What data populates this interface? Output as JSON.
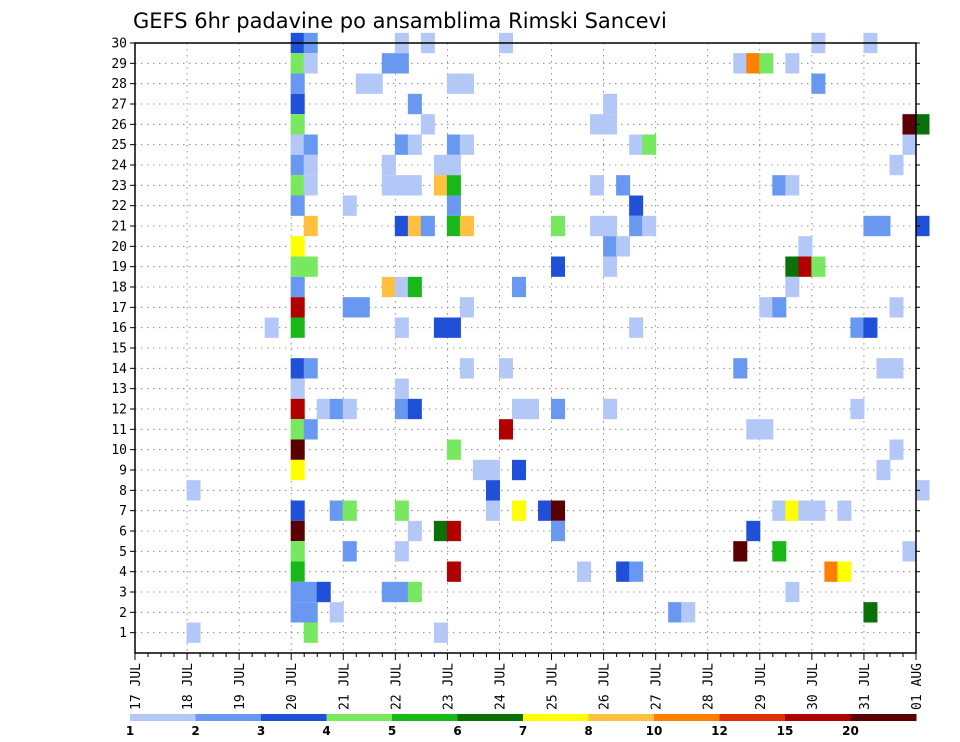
{
  "chart_data": {
    "type": "heatmap",
    "title": "GEFS 6hr padavine po ansamblima Rimski Sancevi",
    "xlabel": "",
    "ylabel": "",
    "x_ticks": [
      "17 JUL",
      "18 JUL",
      "19 JUL",
      "20 JUL",
      "21 JUL",
      "22 JUL",
      "23 JUL",
      "24 JUL",
      "25 JUL",
      "26 JUL",
      "27 JUL",
      "28 JUL",
      "29 JUL",
      "30 JUL",
      "31 JUL",
      "01 AUG"
    ],
    "y_ticks": [
      "1",
      "2",
      "3",
      "4",
      "5",
      "6",
      "7",
      "8",
      "9",
      "10",
      "11",
      "12",
      "13",
      "14",
      "15",
      "16",
      "17",
      "18",
      "19",
      "20",
      "21",
      "22",
      "23",
      "24",
      "25",
      "26",
      "27",
      "28",
      "29",
      "30"
    ],
    "x_unit": "days from 17 JUL",
    "xlim": [
      0,
      15
    ],
    "ylim": [
      0,
      30
    ],
    "grid": true,
    "colorbar": {
      "ticks": [
        "1",
        "2",
        "3",
        "4",
        "5",
        "6",
        "7",
        "8",
        "10",
        "12",
        "15",
        "20"
      ],
      "colors": [
        "#b4c8f8",
        "#6898f0",
        "#2050d8",
        "#78e860",
        "#18b818",
        "#0a700a",
        "#ffff00",
        "#ffc040",
        "#ff8000",
        "#e03000",
        "#b00000",
        "#5a0000"
      ]
    },
    "cells": [
      {
        "x": 3.0,
        "y": 30,
        "v": 3
      },
      {
        "x": 3.25,
        "y": 30,
        "v": 2
      },
      {
        "x": 5.0,
        "y": 30,
        "v": 1
      },
      {
        "x": 5.5,
        "y": 30,
        "v": 1
      },
      {
        "x": 7.0,
        "y": 30,
        "v": 1
      },
      {
        "x": 13.0,
        "y": 30,
        "v": 1
      },
      {
        "x": 14.0,
        "y": 30,
        "v": 1
      },
      {
        "x": 3.0,
        "y": 29,
        "v": 4
      },
      {
        "x": 3.25,
        "y": 29,
        "v": 1
      },
      {
        "x": 4.75,
        "y": 29,
        "v": 2
      },
      {
        "x": 5.0,
        "y": 29,
        "v": 2
      },
      {
        "x": 11.5,
        "y": 29,
        "v": 1
      },
      {
        "x": 11.75,
        "y": 29,
        "v": 10
      },
      {
        "x": 12.0,
        "y": 29,
        "v": 4
      },
      {
        "x": 12.5,
        "y": 29,
        "v": 1
      },
      {
        "x": 3.0,
        "y": 28,
        "v": 2
      },
      {
        "x": 4.25,
        "y": 28,
        "v": 1
      },
      {
        "x": 4.5,
        "y": 28,
        "v": 1
      },
      {
        "x": 6.0,
        "y": 28,
        "v": 1
      },
      {
        "x": 6.25,
        "y": 28,
        "v": 1
      },
      {
        "x": 13.0,
        "y": 28,
        "v": 2
      },
      {
        "x": 3.0,
        "y": 27,
        "v": 3
      },
      {
        "x": 5.25,
        "y": 27,
        "v": 2
      },
      {
        "x": 9.0,
        "y": 27,
        "v": 1
      },
      {
        "x": 3.0,
        "y": 26,
        "v": 4
      },
      {
        "x": 5.5,
        "y": 26,
        "v": 1
      },
      {
        "x": 8.75,
        "y": 26,
        "v": 1
      },
      {
        "x": 9.0,
        "y": 26,
        "v": 1
      },
      {
        "x": 14.75,
        "y": 26,
        "v": 20
      },
      {
        "x": 15.0,
        "y": 26,
        "v": 6
      },
      {
        "x": 3.0,
        "y": 25,
        "v": 1
      },
      {
        "x": 3.25,
        "y": 25,
        "v": 2
      },
      {
        "x": 5.0,
        "y": 25,
        "v": 2
      },
      {
        "x": 5.25,
        "y": 25,
        "v": 1
      },
      {
        "x": 6.0,
        "y": 25,
        "v": 2
      },
      {
        "x": 6.25,
        "y": 25,
        "v": 1
      },
      {
        "x": 9.5,
        "y": 25,
        "v": 1
      },
      {
        "x": 9.75,
        "y": 25,
        "v": 4
      },
      {
        "x": 14.75,
        "y": 25,
        "v": 1
      },
      {
        "x": 3.0,
        "y": 24,
        "v": 2
      },
      {
        "x": 3.25,
        "y": 24,
        "v": 1
      },
      {
        "x": 4.75,
        "y": 24,
        "v": 1
      },
      {
        "x": 5.75,
        "y": 24,
        "v": 1
      },
      {
        "x": 6.0,
        "y": 24,
        "v": 1
      },
      {
        "x": 14.5,
        "y": 24,
        "v": 1
      },
      {
        "x": 3.0,
        "y": 23,
        "v": 4
      },
      {
        "x": 3.25,
        "y": 23,
        "v": 1
      },
      {
        "x": 4.75,
        "y": 23,
        "v": 1
      },
      {
        "x": 5.0,
        "y": 23,
        "v": 1
      },
      {
        "x": 5.25,
        "y": 23,
        "v": 1
      },
      {
        "x": 5.75,
        "y": 23,
        "v": 8
      },
      {
        "x": 6.0,
        "y": 23,
        "v": 5
      },
      {
        "x": 8.75,
        "y": 23,
        "v": 1
      },
      {
        "x": 9.25,
        "y": 23,
        "v": 2
      },
      {
        "x": 12.25,
        "y": 23,
        "v": 2
      },
      {
        "x": 12.5,
        "y": 23,
        "v": 1
      },
      {
        "x": 3.0,
        "y": 22,
        "v": 2
      },
      {
        "x": 4.0,
        "y": 22,
        "v": 1
      },
      {
        "x": 6.0,
        "y": 22,
        "v": 2
      },
      {
        "x": 9.5,
        "y": 22,
        "v": 3
      },
      {
        "x": 3.25,
        "y": 21,
        "v": 8
      },
      {
        "x": 5.0,
        "y": 21,
        "v": 3
      },
      {
        "x": 5.25,
        "y": 21,
        "v": 8
      },
      {
        "x": 5.5,
        "y": 21,
        "v": 2
      },
      {
        "x": 6.0,
        "y": 21,
        "v": 5
      },
      {
        "x": 6.25,
        "y": 21,
        "v": 8
      },
      {
        "x": 8.0,
        "y": 21,
        "v": 4
      },
      {
        "x": 8.75,
        "y": 21,
        "v": 1
      },
      {
        "x": 9.0,
        "y": 21,
        "v": 1
      },
      {
        "x": 9.5,
        "y": 21,
        "v": 2
      },
      {
        "x": 9.75,
        "y": 21,
        "v": 1
      },
      {
        "x": 14.0,
        "y": 21,
        "v": 2
      },
      {
        "x": 14.25,
        "y": 21,
        "v": 2
      },
      {
        "x": 15.0,
        "y": 21,
        "v": 3
      },
      {
        "x": 3.0,
        "y": 20,
        "v": 7
      },
      {
        "x": 9.0,
        "y": 20,
        "v": 2
      },
      {
        "x": 9.25,
        "y": 20,
        "v": 1
      },
      {
        "x": 12.75,
        "y": 20,
        "v": 1
      },
      {
        "x": 3.0,
        "y": 19,
        "v": 4
      },
      {
        "x": 3.25,
        "y": 19,
        "v": 4
      },
      {
        "x": 8.0,
        "y": 19,
        "v": 3
      },
      {
        "x": 9.0,
        "y": 19,
        "v": 1
      },
      {
        "x": 12.5,
        "y": 19,
        "v": 6
      },
      {
        "x": 12.75,
        "y": 19,
        "v": 15
      },
      {
        "x": 13.0,
        "y": 19,
        "v": 4
      },
      {
        "x": 3.0,
        "y": 18,
        "v": 2
      },
      {
        "x": 4.75,
        "y": 18,
        "v": 8
      },
      {
        "x": 5.0,
        "y": 18,
        "v": 1
      },
      {
        "x": 5.25,
        "y": 18,
        "v": 5
      },
      {
        "x": 7.25,
        "y": 18,
        "v": 2
      },
      {
        "x": 12.5,
        "y": 18,
        "v": 1
      },
      {
        "x": 3.0,
        "y": 17,
        "v": 15
      },
      {
        "x": 4.0,
        "y": 17,
        "v": 2
      },
      {
        "x": 4.25,
        "y": 17,
        "v": 2
      },
      {
        "x": 6.25,
        "y": 17,
        "v": 1
      },
      {
        "x": 12.0,
        "y": 17,
        "v": 1
      },
      {
        "x": 12.25,
        "y": 17,
        "v": 2
      },
      {
        "x": 14.5,
        "y": 17,
        "v": 1
      },
      {
        "x": 3.0,
        "y": 16,
        "v": 5
      },
      {
        "x": 2.5,
        "y": 16,
        "v": 1
      },
      {
        "x": 5.0,
        "y": 16,
        "v": 1
      },
      {
        "x": 5.75,
        "y": 16,
        "v": 3
      },
      {
        "x": 6.0,
        "y": 16,
        "v": 3
      },
      {
        "x": 9.5,
        "y": 16,
        "v": 1
      },
      {
        "x": 13.75,
        "y": 16,
        "v": 2
      },
      {
        "x": 14.0,
        "y": 16,
        "v": 3
      },
      {
        "x": 3.0,
        "y": 14,
        "v": 3
      },
      {
        "x": 3.25,
        "y": 14,
        "v": 2
      },
      {
        "x": 6.25,
        "y": 14,
        "v": 1
      },
      {
        "x": 7.0,
        "y": 14,
        "v": 1
      },
      {
        "x": 11.5,
        "y": 14,
        "v": 2
      },
      {
        "x": 14.25,
        "y": 14,
        "v": 1
      },
      {
        "x": 14.5,
        "y": 14,
        "v": 1
      },
      {
        "x": 3.0,
        "y": 13,
        "v": 1
      },
      {
        "x": 5.0,
        "y": 13,
        "v": 1
      },
      {
        "x": 3.0,
        "y": 12,
        "v": 15
      },
      {
        "x": 3.5,
        "y": 12,
        "v": 1
      },
      {
        "x": 3.75,
        "y": 12,
        "v": 2
      },
      {
        "x": 4.0,
        "y": 12,
        "v": 1
      },
      {
        "x": 5.0,
        "y": 12,
        "v": 2
      },
      {
        "x": 5.25,
        "y": 12,
        "v": 3
      },
      {
        "x": 7.25,
        "y": 12,
        "v": 1
      },
      {
        "x": 7.5,
        "y": 12,
        "v": 1
      },
      {
        "x": 8.0,
        "y": 12,
        "v": 2
      },
      {
        "x": 9.0,
        "y": 12,
        "v": 1
      },
      {
        "x": 13.75,
        "y": 12,
        "v": 1
      },
      {
        "x": 3.0,
        "y": 11,
        "v": 4
      },
      {
        "x": 3.25,
        "y": 11,
        "v": 2
      },
      {
        "x": 7.0,
        "y": 11,
        "v": 15
      },
      {
        "x": 11.75,
        "y": 11,
        "v": 1
      },
      {
        "x": 12.0,
        "y": 11,
        "v": 1
      },
      {
        "x": 3.0,
        "y": 10,
        "v": 20
      },
      {
        "x": 6.0,
        "y": 10,
        "v": 4
      },
      {
        "x": 14.5,
        "y": 10,
        "v": 1
      },
      {
        "x": 3.0,
        "y": 9,
        "v": 7
      },
      {
        "x": 6.5,
        "y": 9,
        "v": 1
      },
      {
        "x": 6.75,
        "y": 9,
        "v": 1
      },
      {
        "x": 7.25,
        "y": 9,
        "v": 3
      },
      {
        "x": 14.25,
        "y": 9,
        "v": 1
      },
      {
        "x": 1.0,
        "y": 8,
        "v": 1
      },
      {
        "x": 6.75,
        "y": 8,
        "v": 3
      },
      {
        "x": 15.0,
        "y": 8,
        "v": 1
      },
      {
        "x": 3.0,
        "y": 7,
        "v": 3
      },
      {
        "x": 3.75,
        "y": 7,
        "v": 2
      },
      {
        "x": 4.0,
        "y": 7,
        "v": 4
      },
      {
        "x": 5.0,
        "y": 7,
        "v": 4
      },
      {
        "x": 6.75,
        "y": 7,
        "v": 1
      },
      {
        "x": 7.25,
        "y": 7,
        "v": 7
      },
      {
        "x": 7.75,
        "y": 7,
        "v": 3
      },
      {
        "x": 8.0,
        "y": 7,
        "v": 20
      },
      {
        "x": 12.25,
        "y": 7,
        "v": 1
      },
      {
        "x": 12.5,
        "y": 7,
        "v": 7
      },
      {
        "x": 12.75,
        "y": 7,
        "v": 1
      },
      {
        "x": 13.0,
        "y": 7,
        "v": 1
      },
      {
        "x": 13.5,
        "y": 7,
        "v": 1
      },
      {
        "x": 3.0,
        "y": 6,
        "v": 20
      },
      {
        "x": 5.25,
        "y": 6,
        "v": 1
      },
      {
        "x": 5.75,
        "y": 6,
        "v": 6
      },
      {
        "x": 6.0,
        "y": 6,
        "v": 15
      },
      {
        "x": 8.0,
        "y": 6,
        "v": 2
      },
      {
        "x": 11.75,
        "y": 6,
        "v": 3
      },
      {
        "x": 3.0,
        "y": 5,
        "v": 4
      },
      {
        "x": 4.0,
        "y": 5,
        "v": 2
      },
      {
        "x": 5.0,
        "y": 5,
        "v": 1
      },
      {
        "x": 11.5,
        "y": 5,
        "v": 20
      },
      {
        "x": 12.25,
        "y": 5,
        "v": 5
      },
      {
        "x": 14.75,
        "y": 5,
        "v": 1
      },
      {
        "x": 3.0,
        "y": 4,
        "v": 5
      },
      {
        "x": 6.0,
        "y": 4,
        "v": 15
      },
      {
        "x": 8.5,
        "y": 4,
        "v": 1
      },
      {
        "x": 9.25,
        "y": 4,
        "v": 3
      },
      {
        "x": 9.5,
        "y": 4,
        "v": 2
      },
      {
        "x": 13.25,
        "y": 4,
        "v": 10
      },
      {
        "x": 13.5,
        "y": 4,
        "v": 7
      },
      {
        "x": 3.0,
        "y": 3,
        "v": 2
      },
      {
        "x": 3.25,
        "y": 3,
        "v": 2
      },
      {
        "x": 3.5,
        "y": 3,
        "v": 3
      },
      {
        "x": 4.75,
        "y": 3,
        "v": 2
      },
      {
        "x": 5.0,
        "y": 3,
        "v": 2
      },
      {
        "x": 5.25,
        "y": 3,
        "v": 4
      },
      {
        "x": 12.5,
        "y": 3,
        "v": 1
      },
      {
        "x": 3.0,
        "y": 2,
        "v": 2
      },
      {
        "x": 3.25,
        "y": 2,
        "v": 2
      },
      {
        "x": 3.75,
        "y": 2,
        "v": 1
      },
      {
        "x": 10.25,
        "y": 2,
        "v": 2
      },
      {
        "x": 10.5,
        "y": 2,
        "v": 1
      },
      {
        "x": 14.0,
        "y": 2,
        "v": 6
      },
      {
        "x": 1.0,
        "y": 1,
        "v": 1
      },
      {
        "x": 3.25,
        "y": 1,
        "v": 4
      },
      {
        "x": 5.75,
        "y": 1,
        "v": 1
      }
    ]
  }
}
